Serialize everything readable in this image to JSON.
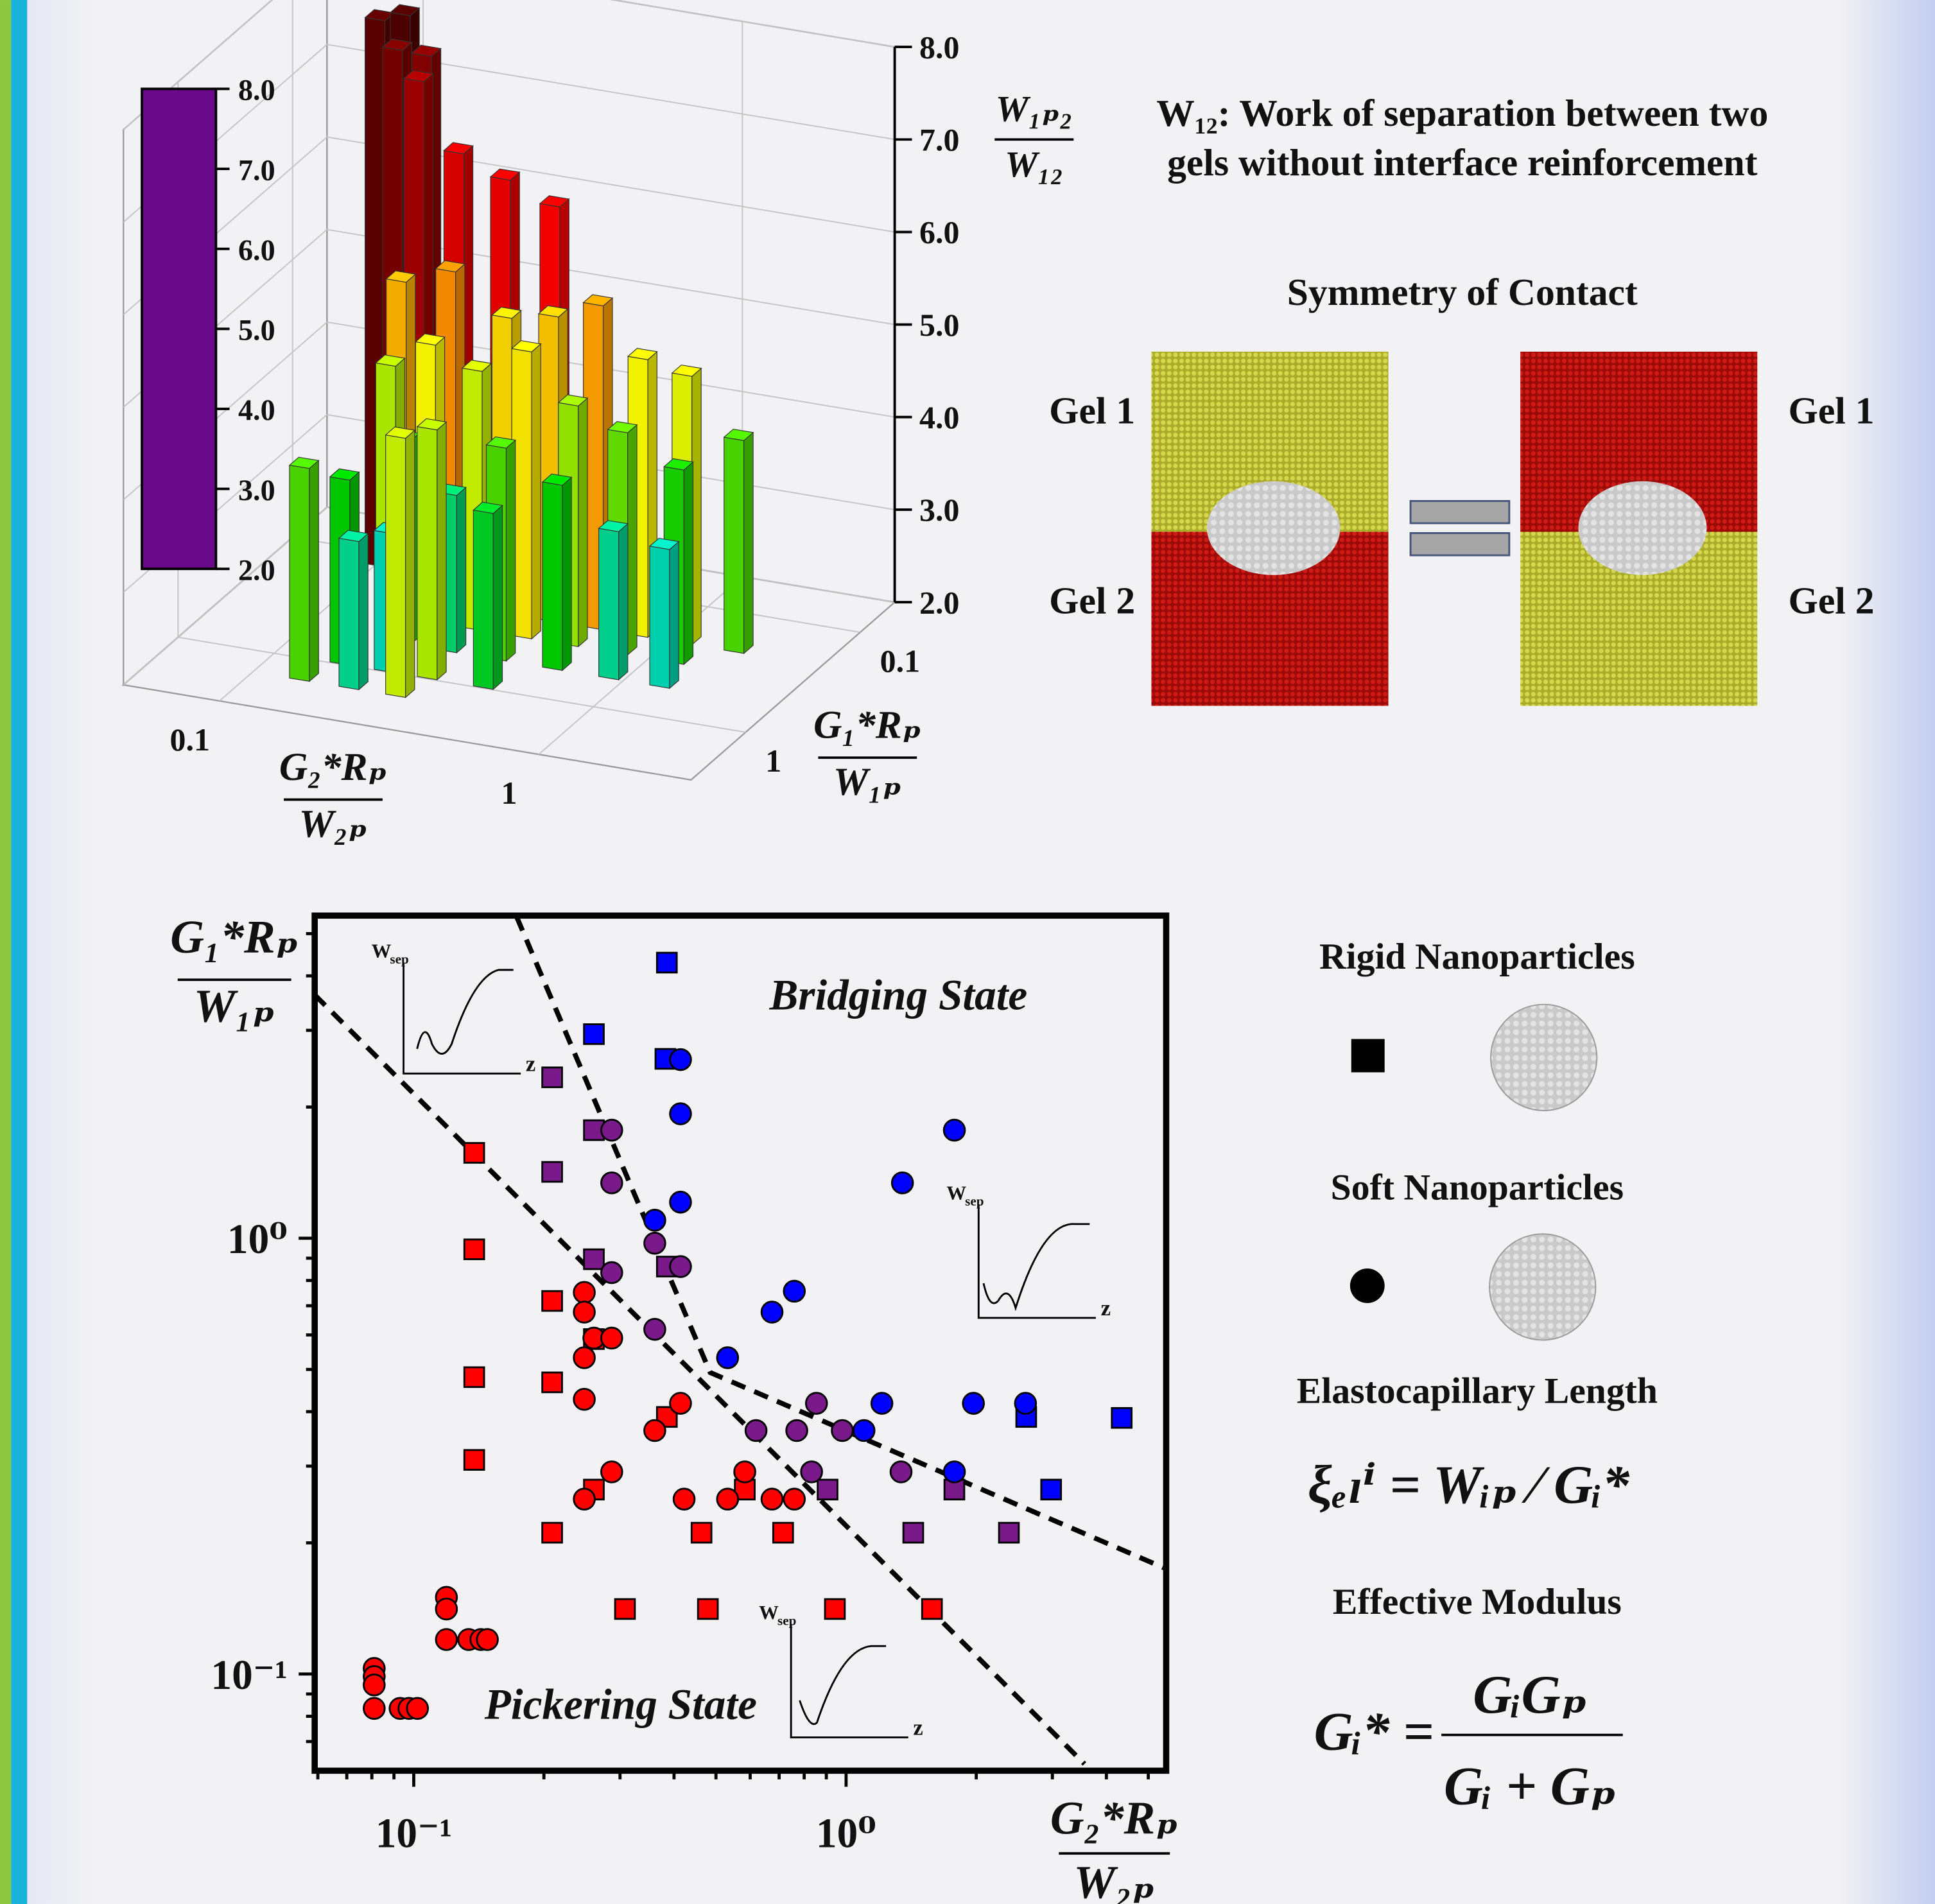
{
  "chart_data": [
    {
      "type": "bar3d",
      "x": [
        0.1,
        0.12,
        0.14,
        0.12,
        0.14,
        0.2,
        0.28,
        0.4,
        0.14,
        0.2,
        0.3,
        0.42,
        0.58,
        0.8,
        1.1,
        1.6,
        0.15,
        0.2,
        0.28,
        0.4,
        0.56,
        0.8,
        1.2,
        0.2,
        0.28,
        0.4,
        0.6,
        0.9,
        1.3,
        0.16,
        0.22,
        0.3,
        0.45,
        0.14,
        0.2,
        0.28
      ],
      "y": [
        0.12,
        0.12,
        0.12,
        0.14,
        0.14,
        0.17,
        0.17,
        0.17,
        0.2,
        0.2,
        0.2,
        0.2,
        0.2,
        0.2,
        0.2,
        0.2,
        0.3,
        0.3,
        0.3,
        0.3,
        0.3,
        0.3,
        0.3,
        0.5,
        0.5,
        0.5,
        0.5,
        0.5,
        0.5,
        0.9,
        0.9,
        0.9,
        0.9,
        1.4,
        1.4,
        1.4
      ],
      "values": [
        7.9,
        8.0,
        7.6,
        7.7,
        7.4,
        6.8,
        6.6,
        6.4,
        5.4,
        5.6,
        5.2,
        5.3,
        5.5,
        5.0,
        4.9,
        4.3,
        4.7,
        5.0,
        4.8,
        5.1,
        4.6,
        4.4,
        4.1,
        4.2,
        3.7,
        4.3,
        4.0,
        3.6,
        3.5,
        4.0,
        3.5,
        4.7,
        3.9,
        4.3,
        3.6,
        4.8
      ],
      "log_x": true,
      "log_y": true,
      "xlim": [
        0.05,
        3
      ],
      "ylim": [
        0.05,
        3
      ],
      "zlim": [
        2,
        8
      ],
      "xticks": [
        {
          "value": 0.1,
          "label": "0.1"
        },
        1
      ],
      "yticks": [
        {
          "value": 0.1,
          "label": "0.1"
        },
        1
      ],
      "zticks": [
        {
          "value": 2,
          "label": "2.0"
        },
        {
          "value": 3,
          "label": "3.0"
        },
        {
          "value": 4,
          "label": "4.0"
        },
        {
          "value": 5,
          "label": "5.0"
        },
        {
          "value": 6,
          "label": "6.0"
        },
        {
          "value": 7,
          "label": "7.0"
        },
        {
          "value": 8,
          "label": "8.0"
        }
      ],
      "xlabel": {
        "numerator": "G₂*Rₚ",
        "denominator": "W₂ₚ"
      },
      "ylabel": {
        "numerator": "G₁*Rₚ",
        "denominator": "W₁ₚ"
      },
      "zlabel": {
        "numerator": "W₁ₚ₂",
        "denominator": "W₁₂"
      },
      "colormap": [
        {
          "value": 2,
          "color": "#6a0a8a"
        },
        {
          "value": 2.6,
          "color": "#2020ff"
        },
        {
          "value": 3.3,
          "color": "#00e0ff"
        },
        {
          "value": 4,
          "color": "#00d000"
        },
        {
          "value": 5,
          "color": "#ffff00"
        },
        {
          "value": 5.6,
          "color": "#ff9000"
        },
        {
          "value": 6.4,
          "color": "#ff0000"
        },
        {
          "value": 7.2,
          "color": "#c00000"
        },
        {
          "value": 8,
          "color": "#500000"
        }
      ]
    },
    {
      "type": "scatter",
      "log_x": true,
      "log_y": true,
      "xlim": [
        0.059,
        5.5
      ],
      "ylim": [
        0.06,
        5.5
      ],
      "xticks": [
        {
          "value": 0.1,
          "label": "10⁻¹"
        },
        {
          "value": 1,
          "label": "10⁰"
        }
      ],
      "yticks": [
        {
          "value": 0.1,
          "label": "10⁻¹"
        },
        {
          "value": 1,
          "label": "10⁰"
        }
      ],
      "xminor_ticks": [
        0.06,
        0.07,
        0.08,
        0.09,
        0.2,
        0.3,
        0.4,
        0.5,
        0.6,
        0.7,
        0.8,
        0.9,
        2,
        3,
        4,
        5
      ],
      "yminor_ticks": [
        0.07,
        0.08,
        0.09,
        0.2,
        0.3,
        0.4,
        0.5,
        0.6,
        0.7,
        0.8,
        0.9,
        2,
        3,
        4,
        5
      ],
      "xlabel": {
        "numerator": "G₂*Rₚ",
        "denominator": "W₂ₚ"
      },
      "ylabel": {
        "numerator": "G₁*Rₚ",
        "denominator": "W₁ₚ"
      },
      "series": [
        {
          "name": "Rigid Nanoparticles",
          "marker": "square",
          "x": [
            0.385,
            0.261,
            0.382,
            2.61,
            4.34,
            2.98,
            0.209,
            0.261,
            0.209,
            0.261,
            0.385,
            1.78,
            0.906,
            1.43,
            2.38,
            0.138,
            0.138,
            0.209,
            0.138,
            0.209,
            0.261,
            0.138,
            0.385,
            0.261,
            0.583,
            0.209,
            0.463,
            0.715,
            0.308,
            0.479,
            0.942,
            1.58
          ],
          "y": [
            4.29,
            2.94,
            2.58,
            0.389,
            0.387,
            0.265,
            2.34,
            1.77,
            1.42,
            0.895,
            0.861,
            0.265,
            0.265,
            0.211,
            0.211,
            1.57,
            0.943,
            0.718,
            0.48,
            0.467,
            0.587,
            0.31,
            0.389,
            0.265,
            0.265,
            0.211,
            0.211,
            0.211,
            0.141,
            0.141,
            0.141,
            0.141
          ],
          "colors": [
            "#0000ff",
            "#0000ff",
            "#0000ff",
            "#0000ff",
            "#0000ff",
            "#0000ff",
            "#7a1a8a",
            "#7a1a8a",
            "#7a1a8a",
            "#7a1a8a",
            "#7a1a8a",
            "#7a1a8a",
            "#7a1a8a",
            "#7a1a8a",
            "#7a1a8a",
            "#ff0000",
            "#ff0000",
            "#ff0000",
            "#ff0000",
            "#ff0000",
            "#ff0000",
            "#ff0000",
            "#ff0000",
            "#ff0000",
            "#ff0000",
            "#ff0000",
            "#ff0000",
            "#ff0000",
            "#ff0000",
            "#ff0000",
            "#ff0000",
            "#ff0000"
          ]
        },
        {
          "name": "Soft Nanoparticles",
          "marker": "circle",
          "x": [
            0.414,
            0.414,
            0.414,
            0.361,
            1.78,
            1.35,
            0.759,
            0.674,
            0.532,
            1.21,
            1.97,
            2.6,
            1.1,
            1.78,
            0.287,
            0.287,
            0.361,
            0.287,
            0.361,
            0.414,
            0.854,
            0.619,
            0.769,
            0.98,
            0.832,
            1.34,
            0.248,
            0.248,
            0.261,
            0.287,
            0.248,
            0.248,
            0.361,
            0.414,
            0.287,
            0.248,
            0.422,
            0.532,
            0.583,
            0.674,
            0.759,
            0.119,
            0.119,
            0.119,
            0.134,
            0.143,
            0.148,
            0.081,
            0.081,
            0.081,
            0.081,
            0.093,
            0.0975,
            0.102
          ],
          "y": [
            2.57,
            1.93,
            1.21,
            1.1,
            1.77,
            1.34,
            0.756,
            0.677,
            0.532,
            0.418,
            0.418,
            0.418,
            0.362,
            0.291,
            1.77,
            1.34,
            0.974,
            0.834,
            0.618,
            0.861,
            0.418,
            0.362,
            0.362,
            0.362,
            0.291,
            0.291,
            0.751,
            0.677,
            0.59,
            0.59,
            0.532,
            0.427,
            0.362,
            0.418,
            0.291,
            0.252,
            0.252,
            0.252,
            0.291,
            0.252,
            0.252,
            0.15,
            0.141,
            0.12,
            0.12,
            0.12,
            0.12,
            0.103,
            0.0987,
            0.0944,
            0.0834,
            0.0834,
            0.0834,
            0.0834
          ],
          "colors": [
            "#0000ff",
            "#0000ff",
            "#0000ff",
            "#0000ff",
            "#0000ff",
            "#0000ff",
            "#0000ff",
            "#0000ff",
            "#0000ff",
            "#0000ff",
            "#0000ff",
            "#0000ff",
            "#0000ff",
            "#0000ff",
            "#7a1a8a",
            "#7a1a8a",
            "#7a1a8a",
            "#7a1a8a",
            "#7a1a8a",
            "#7a1a8a",
            "#7a1a8a",
            "#7a1a8a",
            "#7a1a8a",
            "#7a1a8a",
            "#7a1a8a",
            "#7a1a8a",
            "#ff0000",
            "#ff0000",
            "#ff0000",
            "#ff0000",
            "#ff0000",
            "#ff0000",
            "#ff0000",
            "#ff0000",
            "#ff0000",
            "#ff0000",
            "#ff0000",
            "#ff0000",
            "#ff0000",
            "#ff0000",
            "#ff0000",
            "#ff0000",
            "#ff0000",
            "#ff0000",
            "#ff0000",
            "#ff0000",
            "#ff0000",
            "#ff0000",
            "#ff0000",
            "#ff0000",
            "#ff0000",
            "#ff0000",
            "#ff0000",
            "#ff0000"
          ]
        }
      ],
      "boundaries": [
        {
          "x": [
            0.059,
            3.56
          ],
          "y": [
            3.62,
            0.0622
          ]
        },
        {
          "x": [
            0.173,
            0.485,
            5.53
          ],
          "y": [
            5.46,
            0.492,
            0.174
          ]
        }
      ],
      "annotations": [
        "Bridging State",
        "Pickering State"
      ],
      "insets": [
        {
          "ylabel": "W",
          "ylabel_sub": "sep",
          "xlabel": "z"
        },
        {
          "ylabel": "W",
          "ylabel_sub": "sep",
          "xlabel": "z"
        },
        {
          "ylabel": "W",
          "ylabel_sub": "sep",
          "xlabel": "z"
        }
      ]
    }
  ],
  "definition": [
    "W₁₂: Work of separation between two",
    "gels without interface reinforcement"
  ],
  "contact": {
    "title": "Symmetry of Contact",
    "left": {
      "top": "Gel 1",
      "bottom": "Gel 2"
    },
    "right": {
      "top": "Gel 1",
      "bottom": "Gel 2"
    }
  },
  "notes": {
    "elastocapillary": {
      "title": "Elastocapillary Length",
      "formula": "ξₑₗⁱ = Wᵢₚ ∕ Gᵢ*"
    },
    "modulus": {
      "title": "Effective Modulus",
      "lhs": "Gᵢ* =",
      "numerator": "GᵢGₚ",
      "denominator": "Gᵢ + Gₚ"
    }
  }
}
